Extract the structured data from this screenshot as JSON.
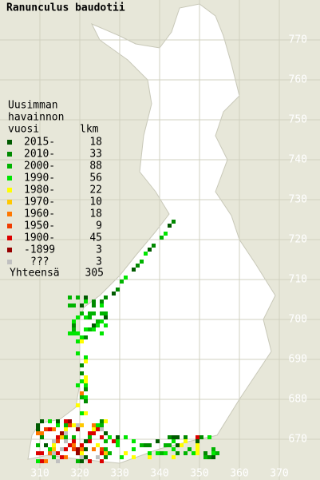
{
  "title": "Ranunculus baudotii",
  "legend": {
    "heading": [
      "Uusimman",
      "havainnon",
      "vuosi"
    ],
    "count_heading": "lkm",
    "entries": [
      {
        "label": "2015-",
        "count": 18,
        "color": "#005a00"
      },
      {
        "label": "2010-",
        "count": 33,
        "color": "#008a00"
      },
      {
        "label": "2000-",
        "count": 88,
        "color": "#00b400"
      },
      {
        "label": "1990-",
        "count": 56,
        "color": "#00e600"
      },
      {
        "label": "1980-",
        "count": 22,
        "color": "#ffff00"
      },
      {
        "label": "1970-",
        "count": 10,
        "color": "#ffc800"
      },
      {
        "label": "1960-",
        "count": 18,
        "color": "#ff7800"
      },
      {
        "label": "1950-",
        "count": 9,
        "color": "#f03c00"
      },
      {
        "label": "1900-",
        "count": 45,
        "color": "#dc0000"
      },
      {
        "label": "-1899",
        "count": 3,
        "color": "#960000"
      },
      {
        "label": "???",
        "count": 3,
        "color": "#c0c0c0"
      }
    ],
    "total_label": "Yhteensä",
    "total": 305
  },
  "axes": {
    "x_labels": [
      310,
      320,
      330,
      340,
      350,
      360,
      370
    ],
    "y_labels": [
      670,
      680,
      690,
      700,
      710,
      720,
      730,
      740,
      750,
      760,
      770
    ]
  }
}
